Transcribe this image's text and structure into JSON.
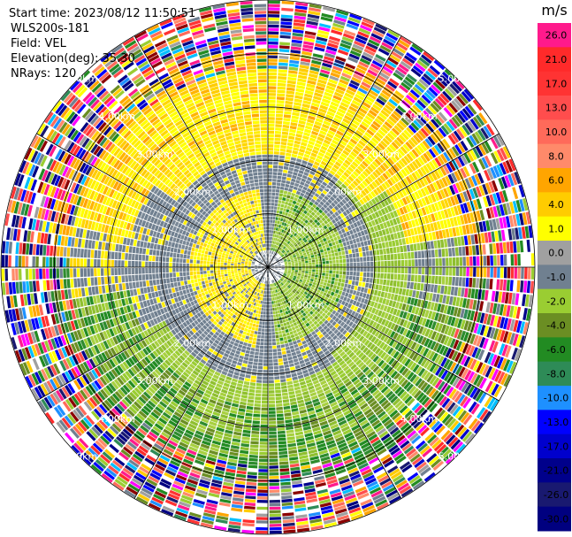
{
  "header": {
    "start_time": "Start time: 2023/08/12 11:50:51",
    "instrument": "WLS200s-181",
    "field": "Field: VEL",
    "elevation": "Elevation(deg): 35.30",
    "nrays": "NRays: 120"
  },
  "chart_data": {
    "type": "heatmap",
    "projection": "polar-ppi",
    "n_rays": 120,
    "range_max_km": 5.0,
    "range_rings_km": [
      1.0,
      2.0,
      3.0,
      4.0,
      5.0
    ],
    "ring_labels": [
      "1.00km",
      "2.00km",
      "3.00km",
      "4.00km",
      "5.00km"
    ],
    "spokes_deg": [
      0,
      30,
      60,
      90,
      120,
      150,
      180,
      210,
      240,
      270,
      300,
      330
    ],
    "colorbar": {
      "unit": "m/s",
      "ticks": [
        "26.0",
        "21.0",
        "17.0",
        "13.0",
        "10.0",
        "8.0",
        "6.0",
        "4.0",
        "1.0",
        "0.0",
        "-1.0",
        "-2.0",
        "-4.0",
        "-6.0",
        "-8.0",
        "-10.0",
        "-13.0",
        "-17.0",
        "-21.0",
        "-26.0",
        "-30.0"
      ],
      "colors": [
        "#ff1a8c",
        "#ff2a2a",
        "#ff3333",
        "#ff4d4d",
        "#ff6a5a",
        "#ff8a6a",
        "#ffa500",
        "#ffcc00",
        "#ffff00",
        "#a0a0a0",
        "#708090",
        "#9acd32",
        "#6b8e23",
        "#228b22",
        "#2e8b57",
        "#1e90ff",
        "#0000ff",
        "#0000cd",
        "#00008b",
        "#191970",
        "#000080"
      ]
    },
    "velocity_pattern": "inner ~1.5km: grey (0) near center, yellow (+1..+4) west, light green (-1..-2) east; 1.5-3km ring: grey band; 3-4km: yellow/orange north, green south; beyond ~4km: noisy multicolor"
  }
}
